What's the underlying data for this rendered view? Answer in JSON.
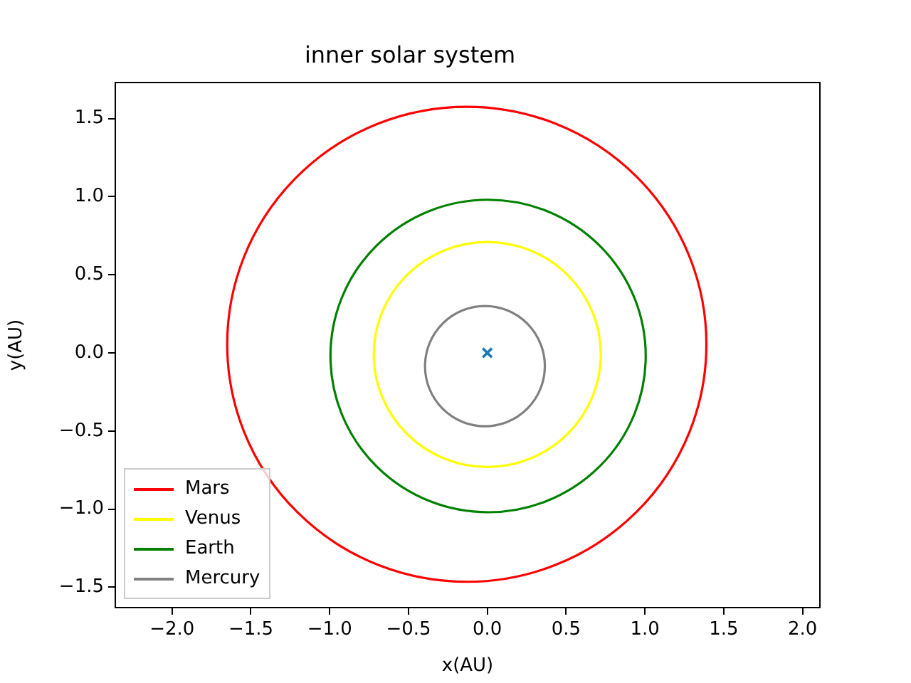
{
  "chart_data": {
    "type": "scatter",
    "title": "inner solar system",
    "xlabel": "x(AU)",
    "ylabel": "y(AU)",
    "annotations": [
      "Mars",
      "Venus",
      "Earth",
      "Mercury"
    ],
    "xlim": [
      -2.36,
      2.11
    ],
    "ylim": [
      -1.63,
      1.73
    ],
    "xticks": [
      {
        "value": -2,
        "label": "−2.0"
      },
      {
        "value": -1.5,
        "label": "−1.5"
      },
      {
        "value": -1,
        "label": "−1.0"
      },
      {
        "value": -0.5,
        "label": "−0.5"
      },
      {
        "value": 0,
        "label": "0.0"
      },
      {
        "value": 0.5,
        "label": "0.5"
      },
      {
        "value": 1,
        "label": "1.0"
      },
      {
        "value": 1.5,
        "label": "1.5"
      },
      {
        "value": 2,
        "label": "2.0"
      }
    ],
    "yticks": [
      {
        "value": -1.5,
        "label": "−1.5"
      },
      {
        "value": -1,
        "label": "−1.0"
      },
      {
        "value": -0.5,
        "label": "−0.5"
      },
      {
        "value": 0,
        "label": "0.0"
      },
      {
        "value": 0.5,
        "label": "0.5"
      },
      {
        "value": 1,
        "label": "1.0"
      },
      {
        "value": 1.5,
        "label": "1.5"
      }
    ],
    "marker": "cross",
    "series": [
      {
        "color": "#1f77b4",
        "x": [
          0
        ],
        "values": [
          0
        ]
      }
    ]
  }
}
